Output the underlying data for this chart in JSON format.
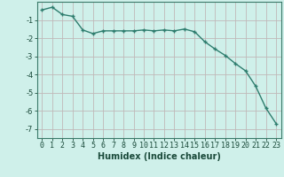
{
  "x": [
    0,
    1,
    2,
    3,
    4,
    5,
    6,
    7,
    8,
    9,
    10,
    11,
    12,
    13,
    14,
    15,
    16,
    17,
    18,
    19,
    20,
    21,
    22,
    23
  ],
  "y": [
    -0.45,
    -0.3,
    -0.7,
    -0.8,
    -1.55,
    -1.75,
    -1.6,
    -1.6,
    -1.6,
    -1.6,
    -1.55,
    -1.6,
    -1.55,
    -1.6,
    -1.5,
    -1.65,
    -2.2,
    -2.6,
    -2.95,
    -3.4,
    -3.8,
    -4.65,
    -5.85,
    -6.7
  ],
  "line_color": "#2e7d6e",
  "marker": "+",
  "marker_size": 3,
  "marker_ew": 1.0,
  "bg_color": "#cff0ea",
  "grid_color_major": "#c0b8b8",
  "grid_color_minor": "#d8e8e5",
  "xlabel": "Humidex (Indice chaleur)",
  "xlim": [
    -0.5,
    23.5
  ],
  "ylim": [
    -7.5,
    -0.0
  ],
  "yticks": [
    -7,
    -6,
    -5,
    -4,
    -3,
    -2,
    -1
  ],
  "xticks": [
    0,
    1,
    2,
    3,
    4,
    5,
    6,
    7,
    8,
    9,
    10,
    11,
    12,
    13,
    14,
    15,
    16,
    17,
    18,
    19,
    20,
    21,
    22,
    23
  ],
  "xlabel_fontsize": 7,
  "tick_fontsize": 6,
  "line_width": 1.0
}
